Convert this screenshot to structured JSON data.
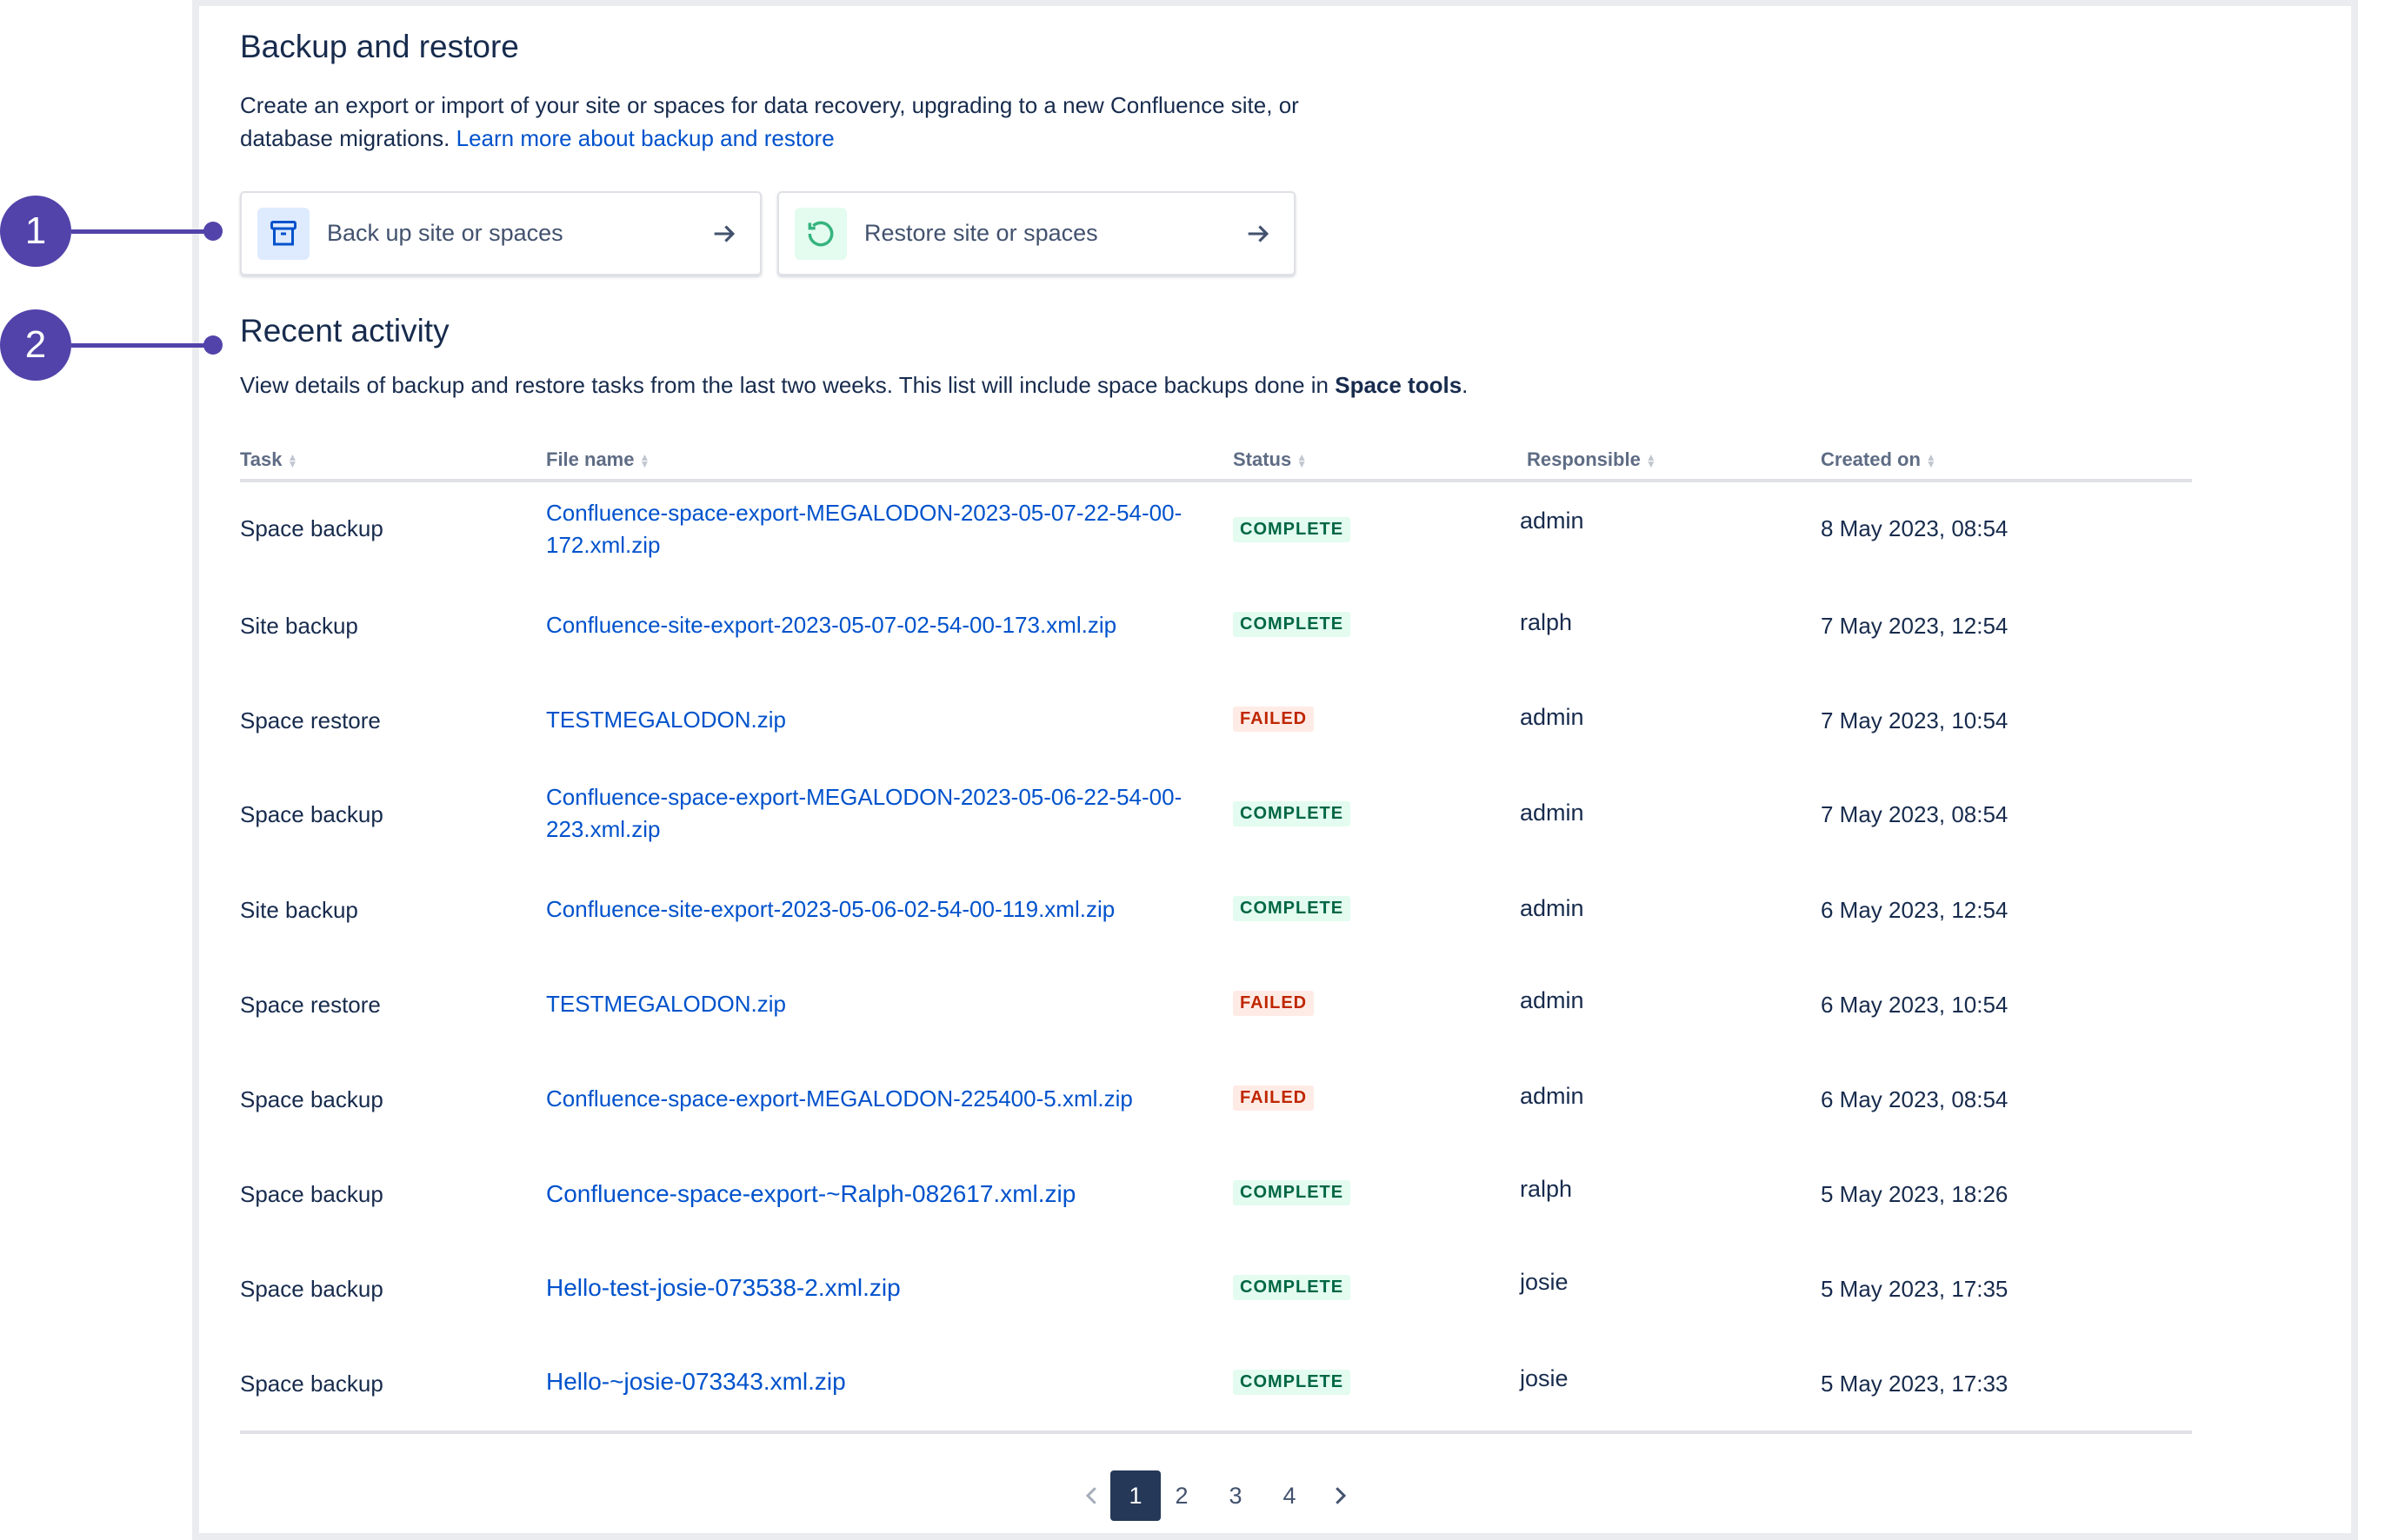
{
  "callouts": [
    "1",
    "2"
  ],
  "header": {
    "title": "Backup and restore",
    "description": "Create an export or import of your site or spaces for data recovery, upgrading to a new Confluence site, or database migrations.",
    "learn_more": "Learn more about backup and restore"
  },
  "actions": {
    "backup_label": "Back up site or spaces",
    "restore_label": "Restore site or spaces"
  },
  "recent": {
    "title": "Recent activity",
    "description_prefix": "View details of backup and restore tasks from the last two weeks. This list will include space backups done in ",
    "description_bold": "Space tools",
    "description_suffix": "."
  },
  "table": {
    "headers": [
      "Task",
      "File name",
      "Status",
      "Responsible",
      "Created on"
    ],
    "rows": [
      {
        "task": "Space backup",
        "file": "Confluence-space-export-MEGALODON-2023-05-07-22-54-00-172.xml.zip",
        "status": "COMPLETE",
        "responsible": "admin",
        "created": "8 May 2023, 08:54"
      },
      {
        "task": "Site backup",
        "file": "Confluence-site-export-2023-05-07-02-54-00-173.xml.zip",
        "status": "COMPLETE",
        "responsible": "ralph",
        "created": "7 May 2023, 12:54"
      },
      {
        "task": "Space restore",
        "file": "TESTMEGALODON.zip",
        "status": "FAILED",
        "responsible": "admin",
        "created": "7 May 2023, 10:54"
      },
      {
        "task": "Space backup",
        "file": "Confluence-space-export-MEGALODON-2023-05-06-22-54-00-223.xml.zip",
        "status": "COMPLETE",
        "responsible": "admin",
        "created": "7 May 2023, 08:54"
      },
      {
        "task": "Site backup",
        "file": "Confluence-site-export-2023-05-06-02-54-00-119.xml.zip",
        "status": "COMPLETE",
        "responsible": "admin",
        "created": "6 May 2023, 12:54"
      },
      {
        "task": "Space restore",
        "file": "TESTMEGALODON.zip",
        "status": "FAILED",
        "responsible": "admin",
        "created": "6 May 2023, 10:54"
      },
      {
        "task": "Space backup",
        "file": "Confluence-space-export-MEGALODON-225400-5.xml.zip",
        "status": "FAILED",
        "responsible": "admin",
        "created": "6 May 2023, 08:54"
      },
      {
        "task": "Space backup",
        "file": "Confluence-space-export-~Ralph-082617.xml.zip",
        "status": "COMPLETE",
        "responsible": "ralph",
        "created": "5 May 2023, 18:26"
      },
      {
        "task": "Space backup",
        "file": "Hello-test-josie-073538-2.xml.zip",
        "status": "COMPLETE",
        "responsible": "josie",
        "created": "5 May 2023, 17:35"
      },
      {
        "task": "Space backup",
        "file": "Hello-~josie-073343.xml.zip",
        "status": "COMPLETE",
        "responsible": "josie",
        "created": "5 May 2023, 17:33"
      }
    ]
  },
  "pagination": {
    "pages": [
      "1",
      "2",
      "3",
      "4"
    ],
    "current": "1"
  },
  "colors": {
    "accent": "#5243aa",
    "link": "#0052cc",
    "complete_bg": "#e3fcef",
    "complete_fg": "#006644",
    "failed_bg": "#ffebe6",
    "failed_fg": "#bf2600"
  }
}
